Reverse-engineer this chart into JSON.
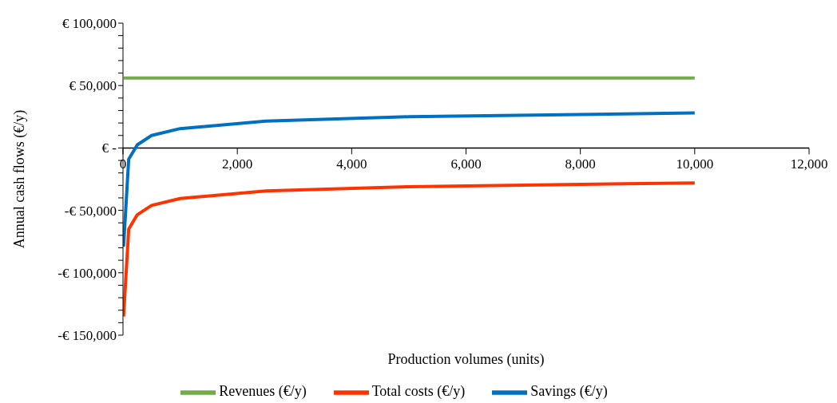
{
  "chart_data": {
    "type": "line",
    "xlabel": "Production volumes (units)",
    "ylabel": "Annual cash flows (€/y)",
    "x": [
      10,
      100,
      250,
      500,
      1000,
      2500,
      5000,
      10000
    ],
    "series": [
      {
        "name": "Revenues (€/y)",
        "color": "#70ad47",
        "values": [
          56000,
          56000,
          56000,
          56000,
          56000,
          56000,
          56000,
          56000
        ]
      },
      {
        "name": "Total costs (€/y)",
        "color": "#ff3300",
        "values": [
          -135000,
          -65000,
          -53500,
          -46000,
          -40500,
          -34500,
          -31000,
          -28000
        ]
      },
      {
        "name": "Savings (€/y)",
        "color": "#0070c0",
        "values": [
          -79000,
          -9000,
          2500,
          10000,
          15500,
          21500,
          25000,
          28000
        ]
      }
    ],
    "xlim": [
      0,
      12000
    ],
    "xticks": [
      {
        "value": 0,
        "label": "0"
      },
      {
        "value": 2000,
        "label": "2,000"
      },
      {
        "value": 4000,
        "label": "4,000"
      },
      {
        "value": 6000,
        "label": "6,000"
      },
      {
        "value": 8000,
        "label": "8,000"
      },
      {
        "value": 10000,
        "label": "10,000"
      },
      {
        "value": 12000,
        "label": "12,000"
      }
    ],
    "ylim": [
      -150000,
      100000
    ],
    "yticks": [
      {
        "value": -150000,
        "label": "-€ 150,000"
      },
      {
        "value": -140000,
        "label": null
      },
      {
        "value": -130000,
        "label": null
      },
      {
        "value": -120000,
        "label": null
      },
      {
        "value": -110000,
        "label": null
      },
      {
        "value": -100000,
        "label": "-€ 100,000"
      },
      {
        "value": -90000,
        "label": null
      },
      {
        "value": -80000,
        "label": null
      },
      {
        "value": -70000,
        "label": null
      },
      {
        "value": -60000,
        "label": null
      },
      {
        "value": -50000,
        "label": "-€ 50,000"
      },
      {
        "value": -40000,
        "label": null
      },
      {
        "value": -30000,
        "label": null
      },
      {
        "value": -20000,
        "label": null
      },
      {
        "value": -10000,
        "label": null
      },
      {
        "value": 0,
        "label": "€ -"
      },
      {
        "value": 10000,
        "label": null
      },
      {
        "value": 20000,
        "label": null
      },
      {
        "value": 30000,
        "label": null
      },
      {
        "value": 40000,
        "label": null
      },
      {
        "value": 50000,
        "label": "€ 50,000"
      },
      {
        "value": 60000,
        "label": null
      },
      {
        "value": 70000,
        "label": null
      },
      {
        "value": 80000,
        "label": null
      },
      {
        "value": 90000,
        "label": null
      },
      {
        "value": 100000,
        "label": "€ 100,000"
      }
    ],
    "grid": false,
    "legend": "bottom",
    "marker": "none",
    "line_style": "solid"
  }
}
